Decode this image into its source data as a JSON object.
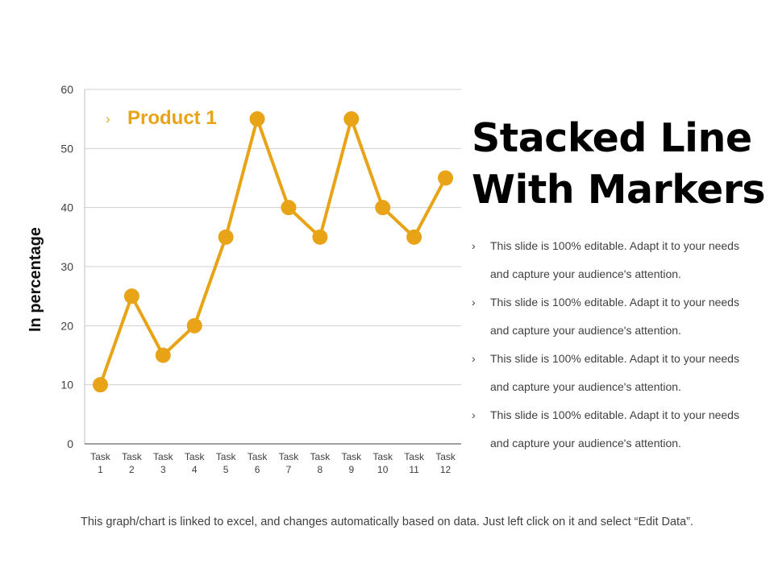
{
  "slide": {
    "title_line1": "Stacked Line",
    "title_line2": "With Markers",
    "bullets": [
      {
        "line1": "This slide is 100% editable. Adapt it to your needs",
        "line2": "and capture your audience's attention."
      },
      {
        "line1": "This slide is 100% editable. Adapt it to your needs",
        "line2": "and capture your audience's attention."
      },
      {
        "line1": "This slide is 100% editable. Adapt it to your needs",
        "line2": "and capture your audience's attention."
      },
      {
        "line1": "This slide is 100% editable. Adapt it to your needs",
        "line2": "and capture your audience's attention."
      }
    ],
    "bullet_glyph": "›",
    "footer": "This graph/chart is linked to excel, and changes automatically  based on data.  Just left click on it and select “Edit Data”."
  },
  "chart_data": {
    "type": "line",
    "categories": [
      "Task 1",
      "Task 2",
      "Task 3",
      "Task 4",
      "Task 5",
      "Task 6",
      "Task 7",
      "Task 8",
      "Task 9",
      "Task 10",
      "Task 11",
      "Task 12"
    ],
    "series": [
      {
        "name": "Product 1",
        "values": [
          10,
          25,
          15,
          20,
          35,
          55,
          40,
          35,
          55,
          40,
          35,
          45
        ],
        "color": "#E8A317"
      }
    ],
    "ylabel": "In percentage",
    "xlabel": "",
    "ylim": [
      0,
      60
    ],
    "yticks": [
      0,
      10,
      20,
      30,
      40,
      50,
      60
    ],
    "grid": true,
    "legend": "top-left",
    "legend_glyph": "›",
    "markers": true
  }
}
